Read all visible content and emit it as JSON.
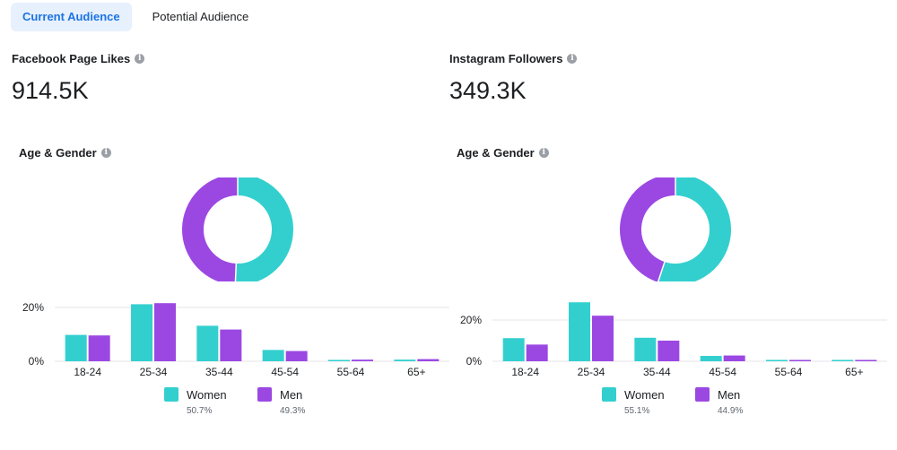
{
  "tabs": [
    {
      "label": "Current Audience",
      "active": true
    },
    {
      "label": "Potential Audience",
      "active": false
    }
  ],
  "colors": {
    "women": "#33cfcf",
    "men": "#9b48e3",
    "accent": "#1b74e4",
    "grid": "#e4e6eb"
  },
  "icons": {
    "info": "info-icon"
  },
  "panels": [
    {
      "stat_label": "Facebook Page Likes",
      "stat_value": "914.5K",
      "section_label": "Age & Gender",
      "legend": [
        {
          "name": "Women",
          "pct": "50.7%"
        },
        {
          "name": "Men",
          "pct": "49.3%"
        }
      ]
    },
    {
      "stat_label": "Instagram Followers",
      "stat_value": "349.3K",
      "section_label": "Age & Gender",
      "legend": [
        {
          "name": "Women",
          "pct": "55.1%"
        },
        {
          "name": "Men",
          "pct": "44.9%"
        }
      ]
    }
  ],
  "chart_data": [
    {
      "type": "pie",
      "style": "donut",
      "labels": [
        "Women",
        "Men"
      ],
      "values": [
        50.7,
        49.3
      ]
    },
    {
      "type": "bar",
      "categories": [
        "18-24",
        "25-34",
        "35-44",
        "45-54",
        "55-64",
        "65+"
      ],
      "series": [
        {
          "name": "Women",
          "values": [
            9.8,
            21.2,
            13.2,
            4.2,
            0.5,
            0.6
          ]
        },
        {
          "name": "Men",
          "values": [
            9.6,
            21.6,
            11.8,
            3.8,
            0.6,
            0.8
          ]
        }
      ],
      "yticks": [
        "0%",
        "20%"
      ],
      "ylim": [
        0,
        22
      ],
      "grid": true
    },
    {
      "type": "pie",
      "style": "donut",
      "labels": [
        "Women",
        "Men"
      ],
      "values": [
        55.1,
        44.9
      ]
    },
    {
      "type": "bar",
      "categories": [
        "18-24",
        "25-34",
        "35-44",
        "45-54",
        "55-64",
        "65+"
      ],
      "series": [
        {
          "name": "Women",
          "values": [
            11.2,
            28.6,
            11.4,
            2.6,
            0.3,
            0.4
          ]
        },
        {
          "name": "Men",
          "values": [
            8.1,
            22.1,
            10.0,
            2.8,
            0.4,
            0.6
          ]
        }
      ],
      "yticks": [
        "0%",
        "20%"
      ],
      "ylim": [
        0,
        30
      ],
      "grid": true
    }
  ]
}
